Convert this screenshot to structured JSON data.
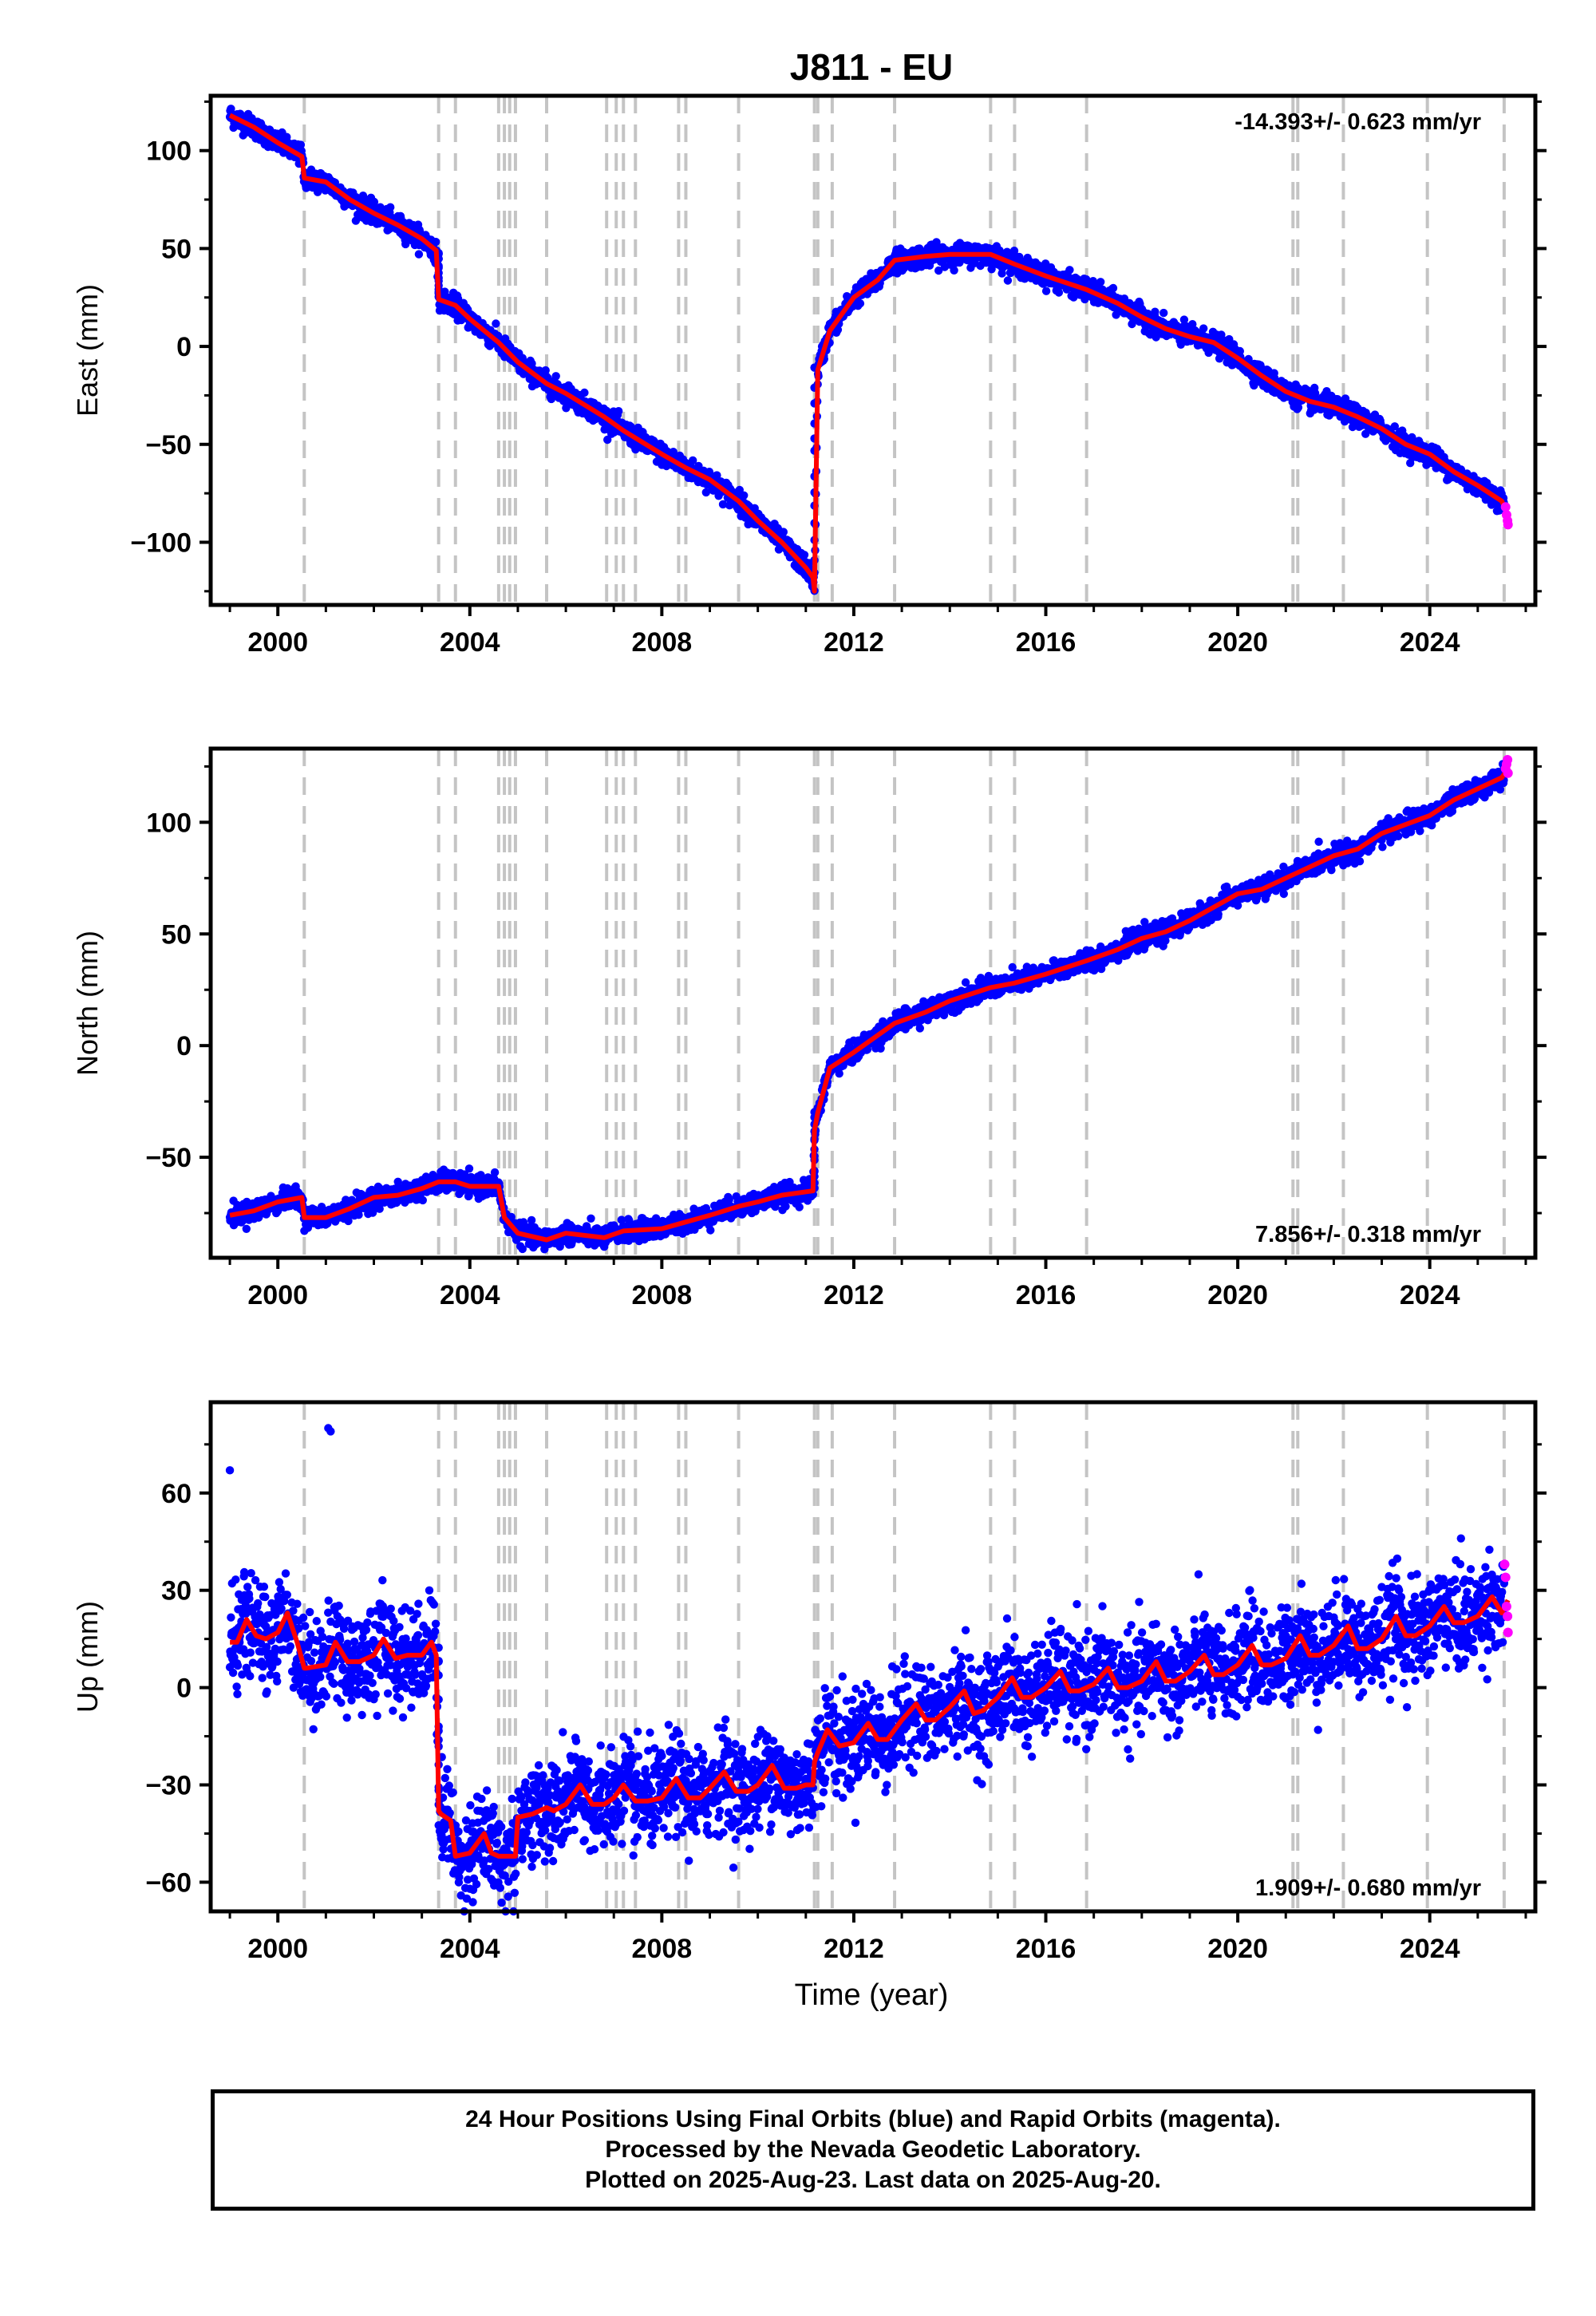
{
  "title": "J811 - EU",
  "colors": {
    "final_orbits": "#0000ff",
    "rapid_orbits": "#ff00ff",
    "model": "#ff0000",
    "events": "#c4c4c4"
  },
  "xlabel": "Time (year)",
  "caption": [
    "24 Hour Positions Using Final Orbits (blue) and Rapid Orbits (magenta).",
    "Processed by the Nevada Geodetic Laboratory.",
    "Plotted on 2025-Aug-23. Last data on 2025-Aug-20."
  ],
  "chart_data": [
    {
      "type": "scatter",
      "ylabel": "East (mm)",
      "rate_label": "-14.393+/- 0.623 mm/yr",
      "rate_placement": "top-right",
      "xlim": [
        1998.6,
        2026.2
      ],
      "ylim": [
        -132,
        128
      ],
      "xticks": [
        2000,
        2004,
        2008,
        2012,
        2016,
        2020,
        2024
      ],
      "yticks": [
        100,
        50,
        0,
        -50,
        -100
      ],
      "event_epochs": [
        2000.55,
        2003.35,
        2003.7,
        2004.6,
        2004.72,
        2004.83,
        2004.95,
        2005.6,
        2006.85,
        2007.05,
        2007.2,
        2007.45,
        2008.35,
        2008.5,
        2009.6,
        2011.18,
        2011.25,
        2011.55,
        2012.85,
        2014.85,
        2015.35,
        2016.85,
        2021.15,
        2021.25,
        2022.2,
        2023.95,
        2025.55
      ],
      "series": [
        {
          "type": "line",
          "color": "#ff0000",
          "x": [
            1999.0,
            1999.5,
            2000.0,
            2000.5,
            2000.55,
            2001.0,
            2001.5,
            2002.0,
            2002.5,
            2003.0,
            2003.3,
            2003.35,
            2003.7,
            2004.0,
            2004.6,
            2005.0,
            2005.6,
            2006.0,
            2006.8,
            2007.2,
            2008.0,
            2008.5,
            2009.0,
            2009.6,
            2010.0,
            2010.5,
            2011.0,
            2011.15,
            2011.18,
            2011.25,
            2011.5,
            2012.0,
            2012.5,
            2012.85,
            2013.5,
            2014.0,
            2014.85,
            2015.35,
            2016.0,
            2016.85,
            2017.5,
            2018.0,
            2018.5,
            2019.0,
            2019.5,
            2020.0,
            2020.5,
            2021.0,
            2021.5,
            2022.0,
            2022.5,
            2023.0,
            2023.5,
            2024.0,
            2024.5,
            2025.0,
            2025.5,
            2025.63
          ],
          "y": [
            118,
            112,
            104,
            97,
            86,
            84,
            75,
            68,
            62,
            55,
            49,
            24,
            21,
            14,
            2,
            -8,
            -19,
            -24,
            -36,
            -43,
            -55,
            -62,
            -68,
            -79,
            -89,
            -100,
            -113,
            -118,
            -125,
            -12,
            8,
            25,
            34,
            44,
            46,
            47,
            47,
            42,
            36,
            29,
            22,
            15,
            9,
            5,
            2,
            -6,
            -15,
            -23,
            -28,
            -31,
            -36,
            -42,
            -50,
            -55,
            -64,
            -71,
            -79,
            -86
          ]
        },
        {
          "type": "scatter",
          "color": "#ff00ff",
          "x": [
            2025.58,
            2025.6,
            2025.62,
            2025.63
          ],
          "y": [
            -82,
            -86,
            -89,
            -91
          ]
        }
      ]
    },
    {
      "type": "scatter",
      "ylabel": "North (mm)",
      "rate_label": "7.856+/- 0.318 mm/yr",
      "rate_placement": "bottom-right",
      "xlim": [
        1998.6,
        2026.2
      ],
      "ylim": [
        -95,
        133
      ],
      "xticks": [
        2000,
        2004,
        2008,
        2012,
        2016,
        2020,
        2024
      ],
      "yticks": [
        100,
        50,
        0,
        -50
      ],
      "event_epochs": [
        2000.55,
        2003.35,
        2003.7,
        2004.6,
        2004.72,
        2004.83,
        2004.95,
        2005.6,
        2006.85,
        2007.05,
        2007.2,
        2007.45,
        2008.35,
        2008.5,
        2009.6,
        2011.18,
        2011.25,
        2011.55,
        2012.85,
        2014.85,
        2015.35,
        2016.85,
        2021.15,
        2021.25,
        2022.2,
        2023.95,
        2025.55
      ],
      "series": [
        {
          "type": "line",
          "color": "#ff0000",
          "x": [
            1999.0,
            1999.5,
            2000.0,
            2000.5,
            2000.55,
            2001.0,
            2001.5,
            2002.0,
            2002.5,
            2003.0,
            2003.35,
            2003.7,
            2004.0,
            2004.6,
            2004.72,
            2005.0,
            2005.6,
            2006.0,
            2006.8,
            2007.2,
            2008.0,
            2008.5,
            2009.0,
            2009.6,
            2010.0,
            2010.5,
            2011.15,
            2011.18,
            2011.25,
            2011.5,
            2012.0,
            2012.85,
            2013.5,
            2014.0,
            2014.85,
            2015.35,
            2016.0,
            2016.85,
            2017.5,
            2018.0,
            2018.5,
            2019.0,
            2019.5,
            2020.0,
            2020.5,
            2021.0,
            2021.5,
            2022.0,
            2022.5,
            2023.0,
            2023.5,
            2024.0,
            2024.5,
            2025.0,
            2025.5,
            2025.63
          ],
          "y": [
            -76,
            -74,
            -70,
            -68,
            -77,
            -77,
            -73,
            -68,
            -67,
            -64,
            -61,
            -61,
            -63,
            -63,
            -77,
            -84,
            -87,
            -84,
            -86,
            -83,
            -82,
            -79,
            -76,
            -72,
            -70,
            -67,
            -65,
            -38,
            -30,
            -10,
            -3,
            10,
            15,
            20,
            26,
            28,
            32,
            38,
            43,
            48,
            51,
            56,
            62,
            68,
            70,
            75,
            80,
            85,
            88,
            95,
            99,
            103,
            110,
            115,
            120,
            124
          ]
        },
        {
          "type": "scatter",
          "color": "#ff00ff",
          "x": [
            2025.58,
            2025.6,
            2025.62,
            2025.63
          ],
          "y": [
            124,
            126,
            128,
            122
          ]
        }
      ]
    },
    {
      "type": "scatter",
      "ylabel": "Up (mm)",
      "rate_label": "1.909+/- 0.680 mm/yr",
      "rate_placement": "bottom-right",
      "xlim": [
        1998.6,
        2026.2
      ],
      "ylim": [
        -69,
        88
      ],
      "xticks": [
        2000,
        2004,
        2008,
        2012,
        2016,
        2020,
        2024
      ],
      "yticks": [
        60,
        30,
        0,
        -30,
        -60
      ],
      "event_epochs": [
        2000.55,
        2003.35,
        2003.7,
        2004.6,
        2004.72,
        2004.83,
        2004.95,
        2005.6,
        2006.85,
        2007.05,
        2007.2,
        2007.45,
        2008.35,
        2008.5,
        2009.6,
        2011.18,
        2011.25,
        2011.55,
        2012.85,
        2014.85,
        2015.35,
        2016.85,
        2021.15,
        2021.25,
        2022.2,
        2023.95,
        2025.55
      ],
      "outliers": {
        "x": [
          1999.0,
          2001.05,
          2001.1,
          2024.65
        ],
        "y": [
          67,
          80,
          79,
          46
        ]
      },
      "series": [
        {
          "type": "line",
          "color": "#ff0000",
          "x": [
            1999.0,
            1999.15,
            1999.35,
            1999.55,
            1999.75,
            2000.0,
            2000.2,
            2000.4,
            2000.55,
            2000.6,
            2001.0,
            2001.2,
            2001.45,
            2001.7,
            2002.0,
            2002.2,
            2002.45,
            2002.7,
            2003.0,
            2003.2,
            2003.3,
            2003.35,
            2003.4,
            2003.6,
            2003.7,
            2004.0,
            2004.3,
            2004.45,
            2004.6,
            2004.72,
            2004.95,
            2005.0,
            2005.3,
            2005.6,
            2005.75,
            2006.0,
            2006.3,
            2006.55,
            2006.8,
            2007.0,
            2007.2,
            2007.45,
            2007.7,
            2008.0,
            2008.3,
            2008.55,
            2008.8,
            2009.0,
            2009.3,
            2009.55,
            2009.8,
            2010.0,
            2010.3,
            2010.55,
            2010.8,
            2011.0,
            2011.15,
            2011.18,
            2011.25,
            2011.45,
            2011.7,
            2012.0,
            2012.3,
            2012.5,
            2012.7,
            2013.0,
            2013.3,
            2013.5,
            2013.7,
            2014.0,
            2014.3,
            2014.5,
            2014.7,
            2015.0,
            2015.3,
            2015.5,
            2015.7,
            2016.0,
            2016.3,
            2016.5,
            2016.7,
            2017.0,
            2017.3,
            2017.5,
            2017.7,
            2018.0,
            2018.3,
            2018.5,
            2018.7,
            2019.0,
            2019.3,
            2019.5,
            2019.7,
            2020.0,
            2020.3,
            2020.5,
            2020.7,
            2021.0,
            2021.3,
            2021.5,
            2021.7,
            2022.0,
            2022.3,
            2022.5,
            2022.7,
            2023.0,
            2023.3,
            2023.5,
            2023.7,
            2024.0,
            2024.3,
            2024.5,
            2024.7,
            2025.0,
            2025.3,
            2025.5,
            2025.63
          ],
          "y": [
            14,
            14,
            21,
            16,
            15,
            17,
            23,
            14,
            6,
            6,
            7,
            14,
            8,
            8,
            10,
            15,
            9,
            10,
            10,
            14,
            10,
            -38,
            -39,
            -41,
            -52,
            -51,
            -45,
            -51,
            -52,
            -52,
            -52,
            -40,
            -39,
            -37,
            -38,
            -36,
            -30,
            -36,
            -36,
            -34,
            -30,
            -35,
            -35,
            -34,
            -28,
            -34,
            -34,
            -31,
            -26,
            -32,
            -32,
            -30,
            -24,
            -31,
            -31,
            -30,
            -30,
            -23,
            -20,
            -13,
            -18,
            -17,
            -11,
            -16,
            -16,
            -10,
            -5,
            -10,
            -10,
            -6,
            -1,
            -8,
            -7,
            -3,
            3,
            -3,
            -3,
            0,
            5,
            -1,
            -1,
            1,
            6,
            0,
            0,
            2,
            8,
            2,
            2,
            5,
            10,
            4,
            4,
            7,
            13,
            7,
            7,
            9,
            16,
            10,
            10,
            13,
            19,
            12,
            12,
            15,
            22,
            16,
            16,
            19,
            25,
            20,
            20,
            22,
            28,
            23,
            27
          ]
        },
        {
          "type": "scatter",
          "color": "#ff00ff",
          "x": [
            2025.56,
            2025.58,
            2025.6,
            2025.62,
            2025.63
          ],
          "y": [
            38,
            34,
            25,
            22,
            17
          ]
        }
      ]
    }
  ]
}
